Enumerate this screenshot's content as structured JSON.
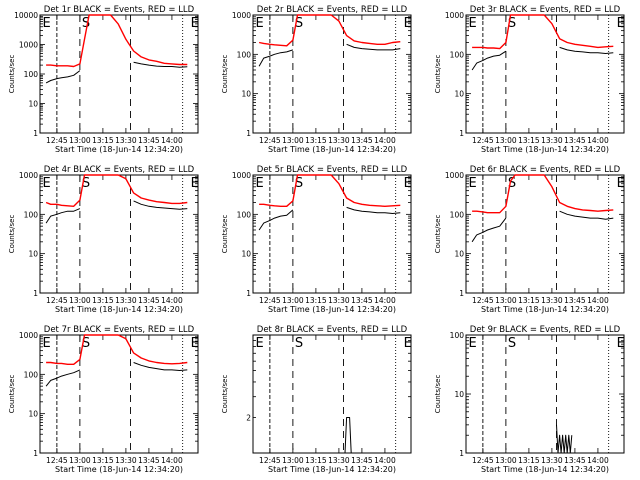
{
  "figure": {
    "panels": [
      {
        "title": "Det 1r BLACK = Events, RED = LLD",
        "ymax": 10000,
        "ytick_labels": [
          "1",
          "10",
          "100",
          "1000",
          "10000"
        ]
      },
      {
        "title": "Det 2r BLACK = Events, RED = LLD",
        "ymax": 1000,
        "ytick_labels": [
          "1",
          "10",
          "100",
          "1000"
        ]
      },
      {
        "title": "Det 3r BLACK = Events, RED = LLD",
        "ymax": 1000,
        "ytick_labels": [
          "1",
          "10",
          "100",
          "1000"
        ]
      },
      {
        "title": "Det 4r BLACK = Events, RED = LLD",
        "ymax": 1000,
        "ytick_labels": [
          "1",
          "10",
          "100",
          "1000"
        ]
      },
      {
        "title": "Det 5r BLACK = Events, RED = LLD",
        "ymax": 1000,
        "ytick_labels": [
          "1",
          "10",
          "100",
          "1000"
        ]
      },
      {
        "title": "Det 6r BLACK = Events, RED = LLD",
        "ymax": 1000,
        "ytick_labels": [
          "1",
          "10",
          "100",
          "1000"
        ]
      },
      {
        "title": "Det 7r BLACK = Events, RED = LLD",
        "ymax": 1000,
        "ytick_labels": [
          "1",
          "10",
          "100",
          "1000"
        ]
      },
      {
        "title": "Det 8r BLACK = Events, RED = LLD",
        "ymax": 10,
        "ytick_labels": [
          "2"
        ]
      },
      {
        "title": "Det 9r BLACK = Events, RED = LLD",
        "ymax": 100,
        "ytick_labels": [
          "1",
          "10",
          "100"
        ]
      }
    ],
    "ylabel": "Counts/sec",
    "xlabel": "Start Time (18-Jun-14 12:34:20)",
    "xtick_labels": [
      "12:45",
      "13:00",
      "13:15",
      "13:30",
      "13:45",
      "14:00"
    ],
    "markers": {
      "start": "E",
      "middle": "S",
      "end": "E"
    }
  },
  "chart_data": [
    {
      "type": "line",
      "title": "Det 1r BLACK = Events, RED = LLD",
      "xlabel": "Start Time (18-Jun-14 12:34:20)",
      "ylabel": "Counts/sec",
      "yscale": "log",
      "ylim": [
        1,
        10000
      ],
      "xlim": [
        "12:34",
        "14:17"
      ],
      "x": [
        "12:38",
        "12:41",
        "12:45",
        "12:48",
        "12:52",
        "12:56",
        "13:00",
        "13:03",
        "13:06",
        "13:10",
        "13:15",
        "13:20",
        "13:25",
        "13:30",
        "13:35",
        "13:40",
        "13:45",
        "13:50",
        "13:55",
        "14:00",
        "14:05",
        "14:10"
      ],
      "series": [
        {
          "name": "Events",
          "color": "#000000",
          "values": [
            50,
            60,
            70,
            75,
            80,
            90,
            130,
            null,
            null,
            null,
            null,
            null,
            null,
            null,
            250,
            220,
            200,
            185,
            180,
            180,
            170,
            175
          ]
        },
        {
          "name": "LLD",
          "color": "#ff0000",
          "values": [
            200,
            200,
            190,
            190,
            190,
            180,
            220,
            1500,
            10000,
            10000,
            10000,
            10000,
            5000,
            1500,
            600,
            380,
            300,
            270,
            230,
            220,
            210,
            210
          ]
        }
      ]
    },
    {
      "type": "line",
      "title": "Det 2r BLACK = Events, RED = LLD",
      "xlabel": "Start Time (18-Jun-14 12:34:20)",
      "ylabel": "Counts/sec",
      "yscale": "log",
      "ylim": [
        1,
        1000
      ],
      "xlim": [
        "12:34",
        "14:17"
      ],
      "x": [
        "12:38",
        "12:41",
        "12:45",
        "12:48",
        "12:52",
        "12:56",
        "13:00",
        "13:03",
        "13:06",
        "13:10",
        "13:15",
        "13:20",
        "13:25",
        "13:30",
        "13:35",
        "13:40",
        "13:45",
        "13:50",
        "13:55",
        "14:00",
        "14:05",
        "14:10"
      ],
      "series": [
        {
          "name": "Events",
          "color": "#000000",
          "values": [
            50,
            80,
            90,
            100,
            110,
            115,
            130,
            null,
            null,
            null,
            null,
            null,
            null,
            null,
            180,
            150,
            140,
            135,
            130,
            130,
            130,
            140
          ]
        },
        {
          "name": "LLD",
          "color": "#ff0000",
          "values": [
            200,
            190,
            180,
            175,
            170,
            165,
            230,
            1000,
            1000,
            1000,
            1000,
            1000,
            1000,
            700,
            300,
            220,
            200,
            190,
            180,
            180,
            200,
            210
          ]
        }
      ]
    },
    {
      "type": "line",
      "title": "Det 3r BLACK = Events, RED = LLD",
      "xlabel": "Start Time (18-Jun-14 12:34:20)",
      "ylabel": "Counts/sec",
      "yscale": "log",
      "ylim": [
        1,
        1000
      ],
      "xlim": [
        "12:34",
        "14:17"
      ],
      "x": [
        "12:38",
        "12:41",
        "12:45",
        "12:48",
        "12:52",
        "12:56",
        "13:00",
        "13:03",
        "13:06",
        "13:10",
        "13:15",
        "13:20",
        "13:25",
        "13:30",
        "13:35",
        "13:40",
        "13:45",
        "13:50",
        "13:55",
        "14:00",
        "14:05",
        "14:10"
      ],
      "series": [
        {
          "name": "Events",
          "color": "#000000",
          "values": [
            40,
            60,
            70,
            80,
            90,
            95,
            120,
            null,
            null,
            null,
            null,
            null,
            null,
            null,
            150,
            130,
            120,
            115,
            110,
            110,
            105,
            110
          ]
        },
        {
          "name": "LLD",
          "color": "#ff0000",
          "values": [
            150,
            150,
            150,
            145,
            145,
            140,
            200,
            1000,
            1000,
            1000,
            1000,
            1000,
            1000,
            600,
            250,
            200,
            180,
            170,
            160,
            150,
            155,
            160
          ]
        }
      ]
    },
    {
      "type": "line",
      "title": "Det 4r BLACK = Events, RED = LLD",
      "xlabel": "Start Time (18-Jun-14 12:34:20)",
      "ylabel": "Counts/sec",
      "yscale": "log",
      "ylim": [
        1,
        1000
      ],
      "xlim": [
        "12:34",
        "14:17"
      ],
      "x": [
        "12:38",
        "12:41",
        "12:45",
        "12:48",
        "12:52",
        "12:56",
        "13:00",
        "13:03",
        "13:06",
        "13:10",
        "13:15",
        "13:20",
        "13:25",
        "13:30",
        "13:35",
        "13:40",
        "13:45",
        "13:50",
        "13:55",
        "14:00",
        "14:05",
        "14:10"
      ],
      "series": [
        {
          "name": "Events",
          "color": "#000000",
          "values": [
            60,
            90,
            100,
            110,
            120,
            120,
            140,
            null,
            null,
            null,
            null,
            null,
            null,
            null,
            220,
            180,
            160,
            150,
            145,
            140,
            135,
            140
          ]
        },
        {
          "name": "LLD",
          "color": "#ff0000",
          "values": [
            200,
            180,
            180,
            170,
            165,
            160,
            230,
            1000,
            1000,
            1000,
            1000,
            1000,
            1000,
            800,
            350,
            260,
            230,
            210,
            200,
            190,
            190,
            200
          ]
        }
      ]
    },
    {
      "type": "line",
      "title": "Det 5r BLACK = Events, RED = LLD",
      "xlabel": "Start Time (18-Jun-14 12:34:20)",
      "ylabel": "Counts/sec",
      "yscale": "log",
      "ylim": [
        1,
        1000
      ],
      "xlim": [
        "12:34",
        "14:17"
      ],
      "x": [
        "12:38",
        "12:41",
        "12:45",
        "12:48",
        "12:52",
        "12:56",
        "13:00",
        "13:03",
        "13:06",
        "13:10",
        "13:15",
        "13:20",
        "13:25",
        "13:30",
        "13:35",
        "13:40",
        "13:45",
        "13:50",
        "13:55",
        "14:00",
        "14:05",
        "14:10"
      ],
      "series": [
        {
          "name": "Events",
          "color": "#000000",
          "values": [
            40,
            60,
            70,
            80,
            90,
            95,
            130,
            null,
            null,
            null,
            null,
            null,
            null,
            null,
            150,
            130,
            120,
            115,
            110,
            110,
            105,
            110
          ]
        },
        {
          "name": "LLD",
          "color": "#ff0000",
          "values": [
            180,
            180,
            170,
            165,
            160,
            160,
            220,
            1000,
            1000,
            1000,
            1000,
            1000,
            1000,
            600,
            260,
            200,
            180,
            170,
            165,
            160,
            165,
            170
          ]
        }
      ]
    },
    {
      "type": "line",
      "title": "Det 6r BLACK = Events, RED = LLD",
      "xlabel": "Start Time (18-Jun-14 12:34:20)",
      "ylabel": "Counts/sec",
      "yscale": "log",
      "ylim": [
        1,
        1000
      ],
      "xlim": [
        "12:34",
        "14:17"
      ],
      "x": [
        "12:38",
        "12:41",
        "12:45",
        "12:48",
        "12:52",
        "12:56",
        "13:00",
        "13:03",
        "13:06",
        "13:10",
        "13:15",
        "13:20",
        "13:25",
        "13:30",
        "13:35",
        "13:40",
        "13:45",
        "13:50",
        "13:55",
        "14:00",
        "14:05",
        "14:10"
      ],
      "series": [
        {
          "name": "Events",
          "color": "#000000",
          "values": [
            20,
            30,
            35,
            40,
            45,
            50,
            80,
            null,
            null,
            null,
            null,
            null,
            null,
            null,
            120,
            100,
            90,
            85,
            80,
            80,
            75,
            80
          ]
        },
        {
          "name": "LLD",
          "color": "#ff0000",
          "values": [
            120,
            120,
            115,
            110,
            110,
            110,
            160,
            700,
            1000,
            1000,
            1000,
            1000,
            1000,
            500,
            200,
            160,
            140,
            130,
            125,
            120,
            125,
            130
          ]
        }
      ]
    },
    {
      "type": "line",
      "title": "Det 7r BLACK = Events, RED = LLD",
      "xlabel": "Start Time (18-Jun-14 12:34:20)",
      "ylabel": "Counts/sec",
      "yscale": "log",
      "ylim": [
        1,
        1000
      ],
      "xlim": [
        "12:34",
        "14:17"
      ],
      "x": [
        "12:38",
        "12:41",
        "12:45",
        "12:48",
        "12:52",
        "12:56",
        "13:00",
        "13:03",
        "13:06",
        "13:10",
        "13:15",
        "13:20",
        "13:25",
        "13:30",
        "13:35",
        "13:40",
        "13:45",
        "13:50",
        "13:55",
        "14:00",
        "14:05",
        "14:10"
      ],
      "series": [
        {
          "name": "Events",
          "color": "#000000",
          "values": [
            50,
            70,
            80,
            90,
            100,
            110,
            130,
            null,
            null,
            null,
            null,
            null,
            null,
            null,
            200,
            170,
            150,
            140,
            130,
            130,
            125,
            130
          ]
        },
        {
          "name": "LLD",
          "color": "#ff0000",
          "values": [
            200,
            200,
            190,
            190,
            180,
            180,
            240,
            1000,
            1000,
            1000,
            1000,
            1000,
            1000,
            800,
            350,
            260,
            220,
            200,
            190,
            185,
            190,
            200
          ]
        }
      ]
    },
    {
      "type": "line",
      "title": "Det 8r BLACK = Events, RED = LLD",
      "xlabel": "Start Time (18-Jun-14 12:34:20)",
      "ylabel": "Counts/sec",
      "yscale": "log",
      "ylim": [
        1,
        10
      ],
      "xlim": [
        "12:34",
        "14:17"
      ],
      "x": [
        "13:34",
        "13:35",
        "13:36",
        "13:37",
        "13:38"
      ],
      "series": [
        {
          "name": "Events",
          "color": "#000000",
          "values": [
            1,
            2,
            2,
            2,
            1
          ]
        }
      ]
    },
    {
      "type": "line",
      "title": "Det 9r BLACK = Events, RED = LLD",
      "xlabel": "Start Time (18-Jun-14 12:34:20)",
      "ylabel": "Counts/sec",
      "yscale": "log",
      "ylim": [
        1,
        100
      ],
      "xlim": [
        "12:34",
        "14:17"
      ],
      "x": [
        "13:33",
        "13:34",
        "13:35",
        "13:36",
        "13:37",
        "13:38",
        "13:39",
        "13:40",
        "13:41",
        "13:42",
        "13:43"
      ],
      "series": [
        {
          "name": "Events",
          "color": "#000000",
          "values": [
            3,
            1,
            2,
            1,
            2,
            1,
            2,
            1,
            2,
            1,
            2
          ]
        }
      ]
    }
  ]
}
